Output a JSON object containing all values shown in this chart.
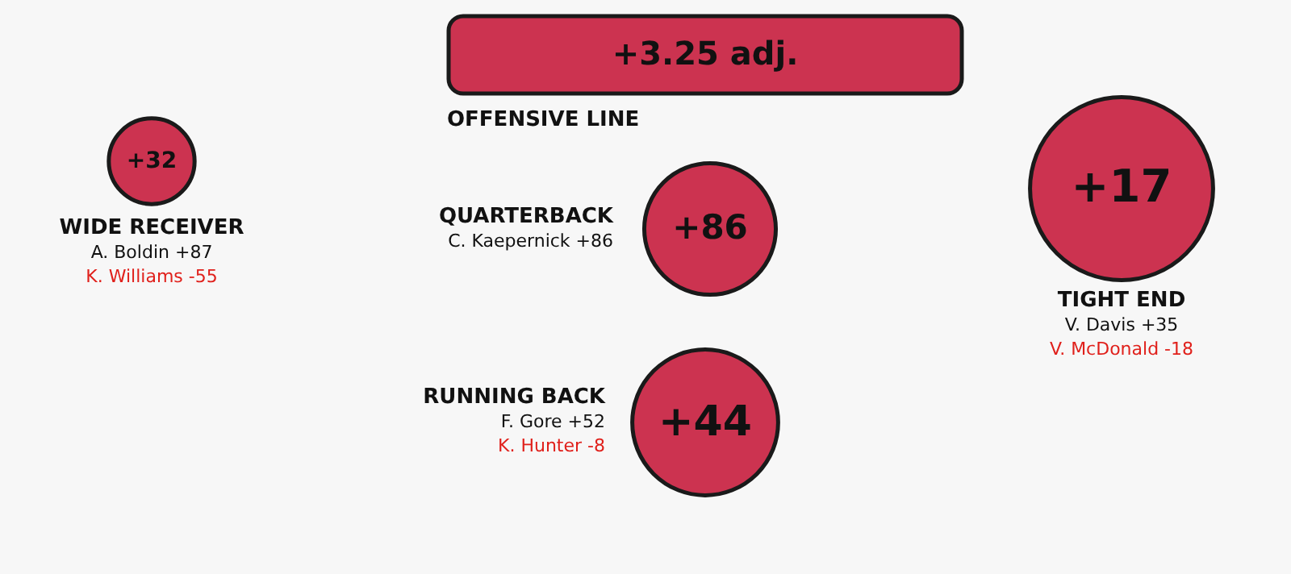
{
  "chart_data": {
    "type": "other",
    "categories": [
      "WIDE RECEIVER",
      "OFFENSIVE LINE",
      "QUARTERBACK",
      "RUNNING BACK",
      "TIGHT END"
    ],
    "values": [
      32,
      3.25,
      86,
      44,
      17
    ],
    "value_labels": [
      "+32",
      "+3.25 adj.",
      "+86",
      "+44",
      "+17"
    ],
    "colors": [
      "#cc3350",
      "#cc3350",
      "#cc3350",
      "#cc3350",
      "#cc3350"
    ],
    "annotations": [
      {
        "text": "A. Boldin +87",
        "x": "WIDE RECEIVER"
      },
      {
        "text": "K. Williams -55",
        "x": "WIDE RECEIVER"
      },
      {
        "text": "C. Kaepernick +86",
        "x": "QUARTERBACK"
      },
      {
        "text": "F. Gore +52",
        "x": "RUNNING BACK"
      },
      {
        "text": "K. Hunter -8",
        "x": "RUNNING BACK"
      },
      {
        "text": "V. Davis +35",
        "x": "TIGHT END"
      },
      {
        "text": "V. McDonald -18",
        "x": "TIGHT END"
      }
    ]
  }
}
